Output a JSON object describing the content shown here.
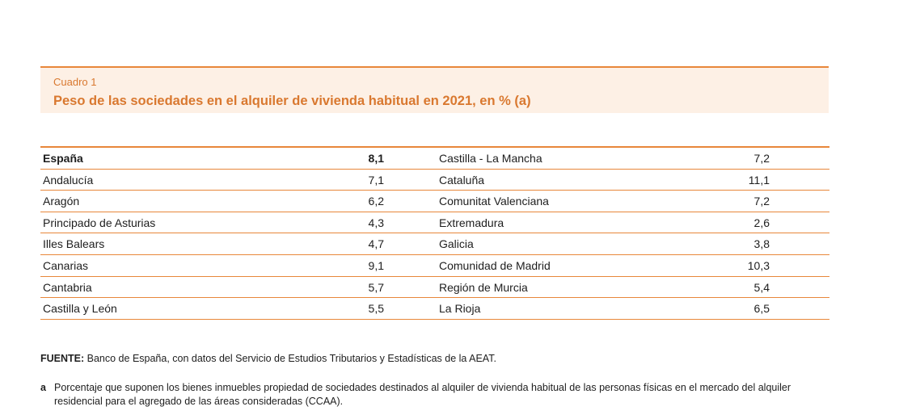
{
  "header": {
    "kicker": "Cuadro 1",
    "title": "Peso de las sociedades en el alquiler de vivienda habitual en 2021, en % (a)"
  },
  "table": {
    "rows": [
      {
        "left_name": "España",
        "left_value": "8,1",
        "right_name": "Castilla - La Mancha",
        "right_value": "7,2"
      },
      {
        "left_name": "Andalucía",
        "left_value": "7,1",
        "right_name": "Cataluña",
        "right_value": "11,1"
      },
      {
        "left_name": "Aragón",
        "left_value": "6,2",
        "right_name": "Comunitat Valenciana",
        "right_value": "7,2"
      },
      {
        "left_name": "Principado de Asturias",
        "left_value": "4,3",
        "right_name": "Extremadura",
        "right_value": "2,6"
      },
      {
        "left_name": "Illes Balears",
        "left_value": "4,7",
        "right_name": "Galicia",
        "right_value": "3,8"
      },
      {
        "left_name": "Canarias",
        "left_value": "9,1",
        "right_name": "Comunidad de Madrid",
        "right_value": "10,3"
      },
      {
        "left_name": "Cantabria",
        "left_value": "5,7",
        "right_name": "Región de Murcia",
        "right_value": "5,4"
      },
      {
        "left_name": "Castilla y León",
        "left_value": "5,5",
        "right_name": "La Rioja",
        "right_value": "6,5"
      }
    ]
  },
  "source": {
    "label": "FUENTE:",
    "text": " Banco de España, con datos del Servicio de Estudios Tributarios y Estadísticas de la AEAT."
  },
  "note": {
    "mark": "a",
    "text": "Porcentaje que suponen los bienes inmuebles propiedad de sociedades destinados al alquiler de vivienda habitual de las personas físicas en el mercado del alquiler residencial para el agregado de las áreas consideradas (CCAA)."
  },
  "colors": {
    "accent": "#e8873a",
    "header_bg": "#fdf0e5",
    "title_text": "#d9782f"
  }
}
